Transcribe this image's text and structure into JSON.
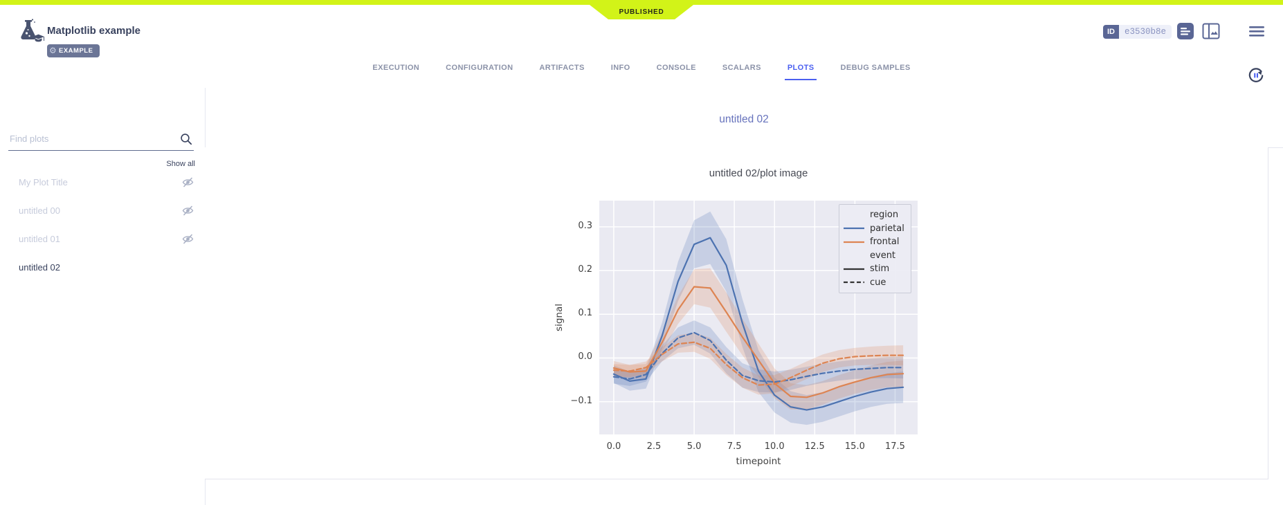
{
  "header": {
    "status_ribbon": "PUBLISHED",
    "title": "Matplotlib example",
    "badge": "EXAMPLE",
    "id_label": "ID",
    "id_value": "e3530b8e"
  },
  "tabs": {
    "items": [
      {
        "label": "EXECUTION",
        "active": false
      },
      {
        "label": "CONFIGURATION",
        "active": false
      },
      {
        "label": "ARTIFACTS",
        "active": false
      },
      {
        "label": "INFO",
        "active": false
      },
      {
        "label": "CONSOLE",
        "active": false
      },
      {
        "label": "SCALARS",
        "active": false
      },
      {
        "label": "PLOTS",
        "active": true
      },
      {
        "label": "DEBUG SAMPLES",
        "active": false
      }
    ]
  },
  "sidebar": {
    "search_placeholder": "Find plots",
    "show_all": "Show all",
    "items": [
      {
        "label": "My Plot Title",
        "hidden": true,
        "selected": false
      },
      {
        "label": "untitled 00",
        "hidden": true,
        "selected": false
      },
      {
        "label": "untitled 01",
        "hidden": true,
        "selected": false
      },
      {
        "label": "untitled 02",
        "hidden": false,
        "selected": true
      }
    ]
  },
  "main": {
    "group_title": "untitled 02"
  },
  "icons": {
    "logo": "flask-with-graduation-cap",
    "badge_gear": "gear",
    "header_right": [
      "details-panel",
      "split-layout-image",
      "hamburger-menu"
    ],
    "refresh": "auto-refresh-pause-circle",
    "sidebar_search": "magnifier",
    "sidebar_items": "eye-off"
  },
  "colors": {
    "accent_blue": "#4a5ff0",
    "published_lime": "#d2f318",
    "header_slate": "#39425e",
    "series_blue": "#4c72b0",
    "series_orange": "#dd8452",
    "axes_background": "#eaeaf2"
  },
  "chart_data": {
    "type": "line",
    "title": "untitled 02/plot image",
    "xlabel": "timepoint",
    "ylabel": "signal",
    "xlim": [
      -0.9,
      18.9
    ],
    "ylim": [
      -0.175,
      0.36
    ],
    "grid": true,
    "legend_position": "upper right",
    "xticks": [
      0.0,
      2.5,
      5.0,
      7.5,
      10.0,
      12.5,
      15.0,
      17.5
    ],
    "yticks": [
      -0.1,
      0.0,
      0.1,
      0.2,
      0.3
    ],
    "xtick_labels": [
      "0.0",
      "2.5",
      "5.0",
      "7.5",
      "10.0",
      "12.5",
      "15.0",
      "17.5"
    ],
    "ytick_labels": [
      "−0.1",
      "0.0",
      "0.1",
      "0.2",
      "0.3"
    ],
    "x": [
      0,
      1,
      2,
      3,
      4,
      5,
      6,
      7,
      8,
      9,
      10,
      11,
      12,
      13,
      14,
      15,
      16,
      17,
      18
    ],
    "series": [
      {
        "name": "parietal/stim",
        "region": "parietal",
        "event": "stim",
        "color": "#4c72b0",
        "dash": "solid",
        "y": [
          -0.037,
          -0.053,
          -0.048,
          0.05,
          0.175,
          0.26,
          0.275,
          0.212,
          0.08,
          -0.03,
          -0.085,
          -0.112,
          -0.119,
          -0.112,
          -0.1,
          -0.088,
          -0.078,
          -0.07,
          -0.067
        ],
        "ci": [
          0.02,
          0.022,
          0.022,
          0.03,
          0.045,
          0.055,
          0.06,
          0.06,
          0.055,
          0.048,
          0.04,
          0.036,
          0.034,
          0.034,
          0.034,
          0.034,
          0.034,
          0.035,
          0.036
        ]
      },
      {
        "name": "frontal/stim",
        "region": "frontal",
        "event": "stim",
        "color": "#dd8452",
        "dash": "solid",
        "y": [
          -0.023,
          -0.032,
          -0.03,
          0.035,
          0.11,
          0.163,
          0.16,
          0.105,
          0.048,
          -0.005,
          -0.058,
          -0.088,
          -0.09,
          -0.08,
          -0.066,
          -0.055,
          -0.045,
          -0.038,
          -0.036
        ],
        "ci": [
          0.016,
          0.016,
          0.016,
          0.022,
          0.032,
          0.04,
          0.045,
          0.045,
          0.042,
          0.038,
          0.034,
          0.03,
          0.028,
          0.027,
          0.027,
          0.027,
          0.028,
          0.029,
          0.03
        ]
      },
      {
        "name": "parietal/cue",
        "region": "parietal",
        "event": "cue",
        "color": "#4c72b0",
        "dash": "dashed",
        "y": [
          -0.043,
          -0.048,
          -0.038,
          0.01,
          0.046,
          0.058,
          0.04,
          -0.005,
          -0.04,
          -0.052,
          -0.055,
          -0.05,
          -0.042,
          -0.035,
          -0.03,
          -0.026,
          -0.024,
          -0.022,
          -0.022
        ],
        "ci": [
          0.016,
          0.016,
          0.016,
          0.018,
          0.024,
          0.028,
          0.03,
          0.03,
          0.028,
          0.026,
          0.024,
          0.023,
          0.022,
          0.022,
          0.022,
          0.022,
          0.023,
          0.024,
          0.025
        ]
      },
      {
        "name": "frontal/cue",
        "region": "frontal",
        "event": "cue",
        "color": "#dd8452",
        "dash": "dashed",
        "y": [
          -0.028,
          -0.03,
          -0.022,
          0.008,
          0.032,
          0.036,
          0.022,
          -0.015,
          -0.045,
          -0.062,
          -0.06,
          -0.045,
          -0.028,
          -0.012,
          -0.002,
          0.003,
          0.005,
          0.006,
          0.006
        ],
        "ci": [
          0.014,
          0.014,
          0.014,
          0.016,
          0.02,
          0.022,
          0.024,
          0.024,
          0.023,
          0.022,
          0.021,
          0.02,
          0.02,
          0.02,
          0.02,
          0.02,
          0.021,
          0.022,
          0.023
        ]
      }
    ],
    "legend": [
      {
        "label": "region",
        "type": "header"
      },
      {
        "label": "parietal",
        "type": "line",
        "color": "#4c72b0",
        "dash": "solid"
      },
      {
        "label": "frontal",
        "type": "line",
        "color": "#dd8452",
        "dash": "solid"
      },
      {
        "label": "event",
        "type": "header"
      },
      {
        "label": "stim",
        "type": "line",
        "color": "#333333",
        "dash": "solid"
      },
      {
        "label": "cue",
        "type": "line",
        "color": "#333333",
        "dash": "dashed"
      }
    ]
  }
}
